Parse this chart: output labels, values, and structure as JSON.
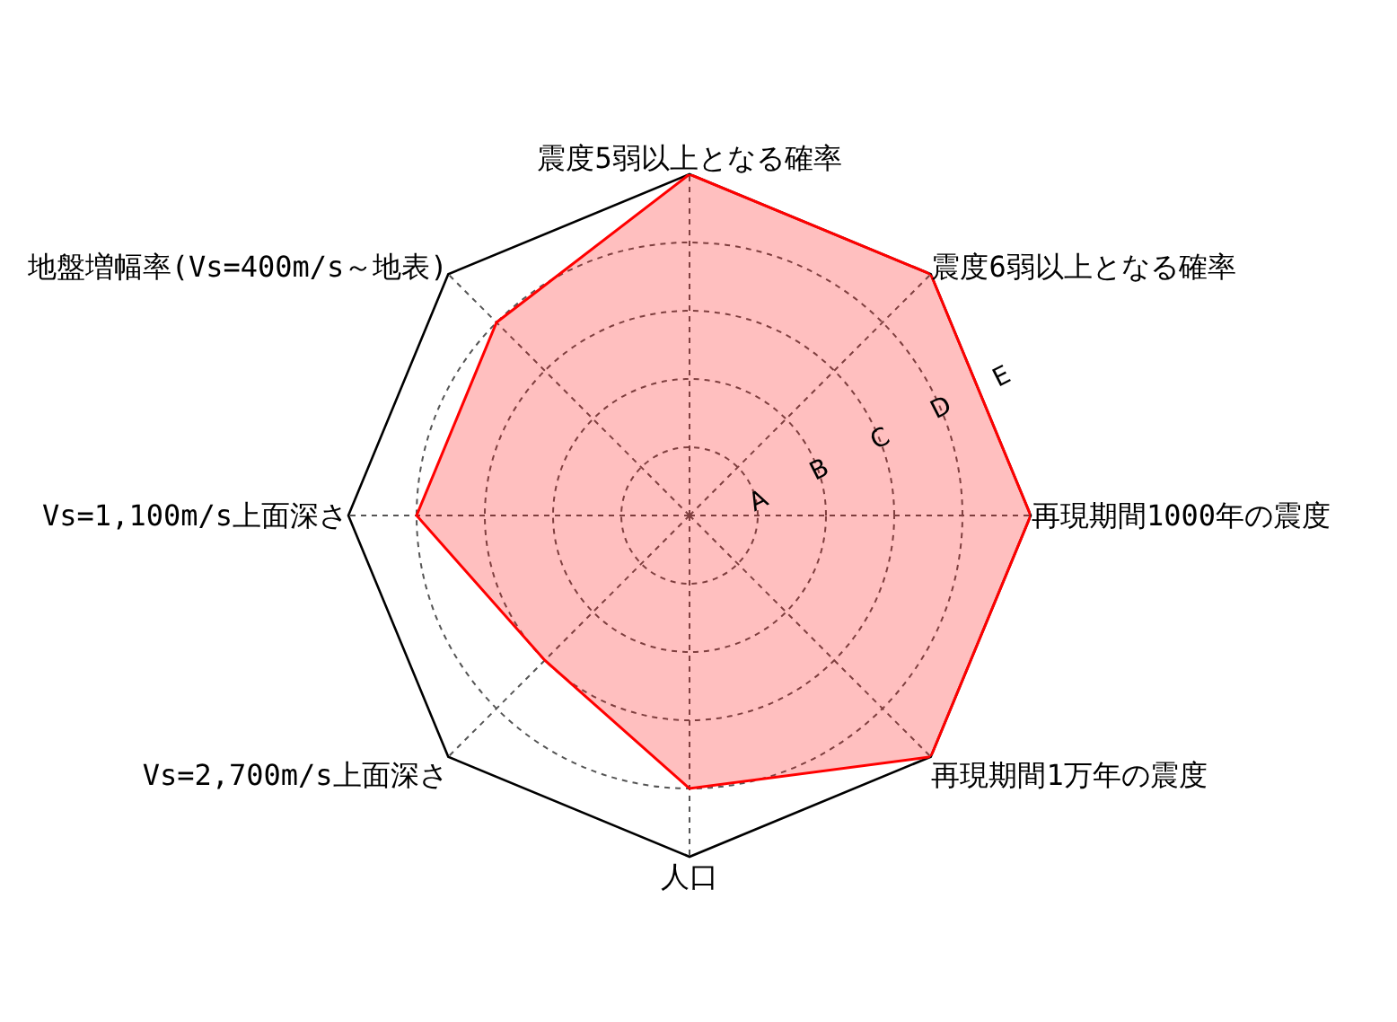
{
  "chart_data": {
    "type": "radar",
    "categories": [
      "震度5弱以上となる確率",
      "震度6弱以上となる確率",
      "再現期間1000年の震度",
      "再現期間1万年の震度",
      "人口",
      "Vs=2,700m/s上面深さ",
      "Vs=1,100m/s上面深さ",
      "地盤増幅率(Vs=400m/s～地表)"
    ],
    "series": [
      {
        "color": "#ff0000",
        "values": [
          5,
          5,
          5,
          5,
          4,
          3,
          4,
          4
        ]
      }
    ],
    "ylim": [
      0,
      5
    ],
    "yticks": [
      {
        "value": 1,
        "label": "A"
      },
      {
        "value": 2,
        "label": "B"
      },
      {
        "value": 3,
        "label": "C"
      },
      {
        "value": 4,
        "label": "D"
      },
      {
        "value": 5,
        "label": "E"
      }
    ],
    "grid": true
  }
}
